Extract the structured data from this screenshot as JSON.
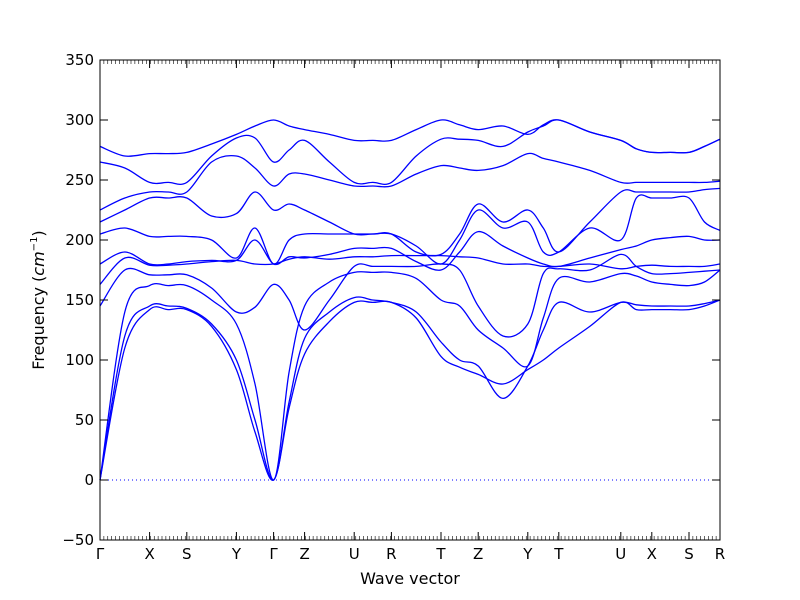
{
  "chart_data": {
    "type": "line",
    "title": "",
    "xlabel": "Wave vector",
    "ylabel_text": "Frequency (",
    "ylabel_unit_base": "cm",
    "ylabel_unit_exp": "−1",
    "ylabel_close": ")",
    "ylim": [
      -50,
      350
    ],
    "yticks": [
      -50,
      0,
      50,
      100,
      150,
      200,
      250,
      300,
      350
    ],
    "grid": false,
    "legend": "none",
    "series_color": "#0000ff",
    "zero_line_color": "#0000ff",
    "x_range": [
      0,
      20
    ],
    "points": [
      {
        "label": "Γ",
        "x": 0
      },
      {
        "label": "X",
        "x": 1.6
      },
      {
        "label": "S",
        "x": 2.8
      },
      {
        "label": "Y",
        "x": 4.4
      },
      {
        "label": "Γ",
        "x": 5.6
      },
      {
        "label": "Z",
        "x": 6.6
      },
      {
        "label": "U",
        "x": 8.2
      },
      {
        "label": "R",
        "x": 9.4
      },
      {
        "label": "T",
        "x": 11.0
      },
      {
        "label": "Z",
        "x": 12.2
      },
      {
        "label": "Y",
        "x": 13.8
      },
      {
        "label": "T",
        "x": 14.8
      },
      {
        "label": "U",
        "x": 16.8
      },
      {
        "label": "X",
        "x": 17.8
      },
      {
        "label": "S",
        "x": 19.0
      },
      {
        "label": "R",
        "x": 20.0
      }
    ],
    "series": [
      {
        "x": [
          0,
          0.8,
          1.6,
          2.2,
          2.8,
          3.6,
          4.4,
          5.0,
          5.6,
          6.1,
          6.6,
          7.4,
          8.2,
          8.8,
          9.4,
          10.2,
          11.0,
          11.6,
          12.2,
          13.0,
          13.8,
          14.3,
          14.8,
          15.8,
          16.8,
          17.3,
          17.8,
          18.4,
          19.0,
          19.5,
          20.0
        ],
        "y": [
          0,
          110,
          142,
          142,
          142,
          128,
          92,
          40,
          0,
          60,
          105,
          132,
          148,
          148,
          148,
          135,
          103,
          94,
          88,
          80,
          92,
          100,
          110,
          128,
          148,
          142,
          142,
          142,
          142,
          145,
          150
        ]
      },
      {
        "x": [
          0,
          0.8,
          1.6,
          2.2,
          2.8,
          3.6,
          4.4,
          5.0,
          5.6,
          6.1,
          6.6,
          7.4,
          8.2,
          8.8,
          9.4,
          10.2,
          11.0,
          11.6,
          12.2,
          13.0,
          13.8,
          14.3,
          14.8,
          15.8,
          16.8,
          17.3,
          17.8,
          18.4,
          19.0,
          19.5,
          20.0
        ],
        "y": [
          0,
          120,
          145,
          145,
          143,
          130,
          100,
          50,
          0,
          65,
          118,
          140,
          152,
          150,
          148,
          140,
          115,
          100,
          95,
          68,
          95,
          125,
          148,
          140,
          148,
          146,
          145,
          145,
          145,
          147,
          150
        ]
      },
      {
        "x": [
          0,
          0.8,
          1.6,
          2.2,
          2.8,
          3.6,
          4.4,
          5.0,
          5.6,
          6.1,
          6.6,
          7.4,
          8.2,
          8.8,
          9.4,
          10.2,
          11.0,
          11.6,
          12.2,
          13.0,
          13.8,
          14.3,
          14.8,
          15.8,
          16.8,
          17.3,
          17.8,
          18.4,
          19.0,
          19.5,
          20.0
        ],
        "y": [
          0,
          140,
          162,
          162,
          162,
          150,
          130,
          80,
          0,
          90,
          145,
          165,
          173,
          173,
          173,
          168,
          150,
          145,
          125,
          110,
          95,
          135,
          168,
          165,
          172,
          170,
          165,
          163,
          162,
          165,
          175
        ]
      },
      {
        "x": [
          0,
          0.8,
          1.6,
          2.2,
          2.8,
          3.6,
          4.4,
          5.0,
          5.6,
          6.1,
          6.6,
          7.4,
          8.2,
          8.8,
          9.4,
          10.2,
          11.0,
          11.6,
          12.2,
          13.0,
          13.8,
          14.3,
          14.8,
          15.8,
          16.8,
          17.3,
          17.8,
          18.4,
          19.0,
          19.5,
          20.0
        ],
        "y": [
          145,
          175,
          171,
          171,
          171,
          160,
          140,
          144,
          163,
          150,
          125,
          150,
          178,
          178,
          178,
          178,
          180,
          175,
          145,
          120,
          130,
          172,
          176,
          175,
          188,
          178,
          172,
          172,
          173,
          174,
          175
        ]
      },
      {
        "x": [
          0,
          0.8,
          1.6,
          2.2,
          2.8,
          3.6,
          4.4,
          5.0,
          5.6,
          6.1,
          6.6,
          7.4,
          8.2,
          8.8,
          9.4,
          10.2,
          11.0,
          11.6,
          12.2,
          13.0,
          13.8,
          14.3,
          14.8,
          15.8,
          16.8,
          17.3,
          17.8,
          18.4,
          19.0,
          19.5,
          20.0
        ],
        "y": [
          163,
          185,
          179,
          179,
          180,
          182,
          183,
          180,
          180,
          184,
          186,
          184,
          186,
          186,
          187,
          187,
          187,
          186,
          185,
          180,
          180,
          178,
          178,
          180,
          176,
          178,
          179,
          178,
          178,
          178,
          180
        ]
      },
      {
        "x": [
          0,
          0.8,
          1.6,
          2.2,
          2.8,
          3.6,
          4.4,
          5.0,
          5.6,
          6.1,
          6.6,
          7.4,
          8.2,
          8.8,
          9.4,
          10.2,
          11.0,
          11.6,
          12.2,
          13.0,
          13.8,
          14.3,
          14.8,
          15.8,
          16.8,
          17.3,
          17.8,
          18.4,
          19.0,
          19.5,
          20.0
        ],
        "y": [
          180,
          190,
          180,
          180,
          182,
          183,
          183,
          200,
          180,
          186,
          185,
          188,
          193,
          193,
          193,
          182,
          175,
          190,
          207,
          195,
          185,
          180,
          178,
          185,
          192,
          195,
          200,
          202,
          203,
          200,
          200
        ]
      },
      {
        "x": [
          0,
          0.8,
          1.6,
          2.2,
          2.8,
          3.6,
          4.4,
          5.0,
          5.6,
          6.1,
          6.6,
          7.4,
          8.2,
          8.8,
          9.4,
          10.2,
          11.0,
          11.6,
          12.2,
          13.0,
          13.8,
          14.3,
          14.8,
          15.8,
          16.8,
          17.3,
          17.8,
          18.4,
          19.0,
          19.5,
          20.0
        ],
        "y": [
          205,
          210,
          203,
          203,
          203,
          200,
          185,
          210,
          180,
          200,
          205,
          205,
          205,
          205,
          205,
          195,
          180,
          200,
          225,
          210,
          215,
          190,
          190,
          210,
          200,
          235,
          235,
          235,
          235,
          215,
          208
        ]
      },
      {
        "x": [
          0,
          0.8,
          1.6,
          2.2,
          2.8,
          3.6,
          4.4,
          5.0,
          5.6,
          6.1,
          6.6,
          7.4,
          8.2,
          8.8,
          9.4,
          10.2,
          11.0,
          11.6,
          12.2,
          13.0,
          13.8,
          14.3,
          14.8,
          15.8,
          16.8,
          17.3,
          17.8,
          18.4,
          19.0,
          19.5,
          20.0
        ],
        "y": [
          215,
          225,
          235,
          235,
          235,
          220,
          222,
          240,
          225,
          230,
          225,
          215,
          205,
          205,
          205,
          190,
          188,
          205,
          230,
          215,
          225,
          210,
          190,
          215,
          240,
          240,
          240,
          240,
          240,
          242,
          243
        ]
      },
      {
        "x": [
          0,
          0.8,
          1.6,
          2.2,
          2.8,
          3.6,
          4.4,
          5.0,
          5.6,
          6.1,
          6.6,
          7.4,
          8.2,
          8.8,
          9.4,
          10.2,
          11.0,
          11.6,
          12.2,
          13.0,
          13.8,
          14.3,
          14.8,
          15.8,
          16.8,
          17.3,
          17.8,
          18.4,
          19.0,
          19.5,
          20.0
        ],
        "y": [
          225,
          235,
          240,
          240,
          240,
          265,
          270,
          260,
          245,
          255,
          255,
          250,
          245,
          245,
          245,
          255,
          262,
          260,
          258,
          262,
          272,
          268,
          265,
          258,
          248,
          248,
          248,
          248,
          248,
          248,
          249
        ]
      },
      {
        "x": [
          0,
          0.8,
          1.6,
          2.2,
          2.8,
          3.6,
          4.4,
          5.0,
          5.6,
          6.1,
          6.6,
          7.4,
          8.2,
          8.8,
          9.4,
          10.2,
          11.0,
          11.6,
          12.2,
          13.0,
          13.8,
          14.3,
          14.8,
          15.8,
          16.8,
          17.3,
          17.8,
          18.4,
          19.0,
          19.5,
          20.0
        ],
        "y": [
          265,
          260,
          248,
          248,
          248,
          270,
          285,
          285,
          265,
          275,
          283,
          265,
          248,
          248,
          248,
          270,
          284,
          284,
          283,
          278,
          290,
          295,
          300,
          290,
          283,
          276,
          273,
          273,
          273,
          278,
          284
        ]
      },
      {
        "x": [
          0,
          0.8,
          1.6,
          2.2,
          2.8,
          3.6,
          4.4,
          5.0,
          5.6,
          6.1,
          6.6,
          7.4,
          8.2,
          8.8,
          9.4,
          10.2,
          11.0,
          11.6,
          12.2,
          13.0,
          13.8,
          14.3,
          14.8,
          15.8,
          16.8,
          17.3,
          17.8,
          18.4,
          19.0,
          19.5,
          20.0
        ],
        "y": [
          278,
          270,
          272,
          272,
          273,
          280,
          288,
          295,
          300,
          295,
          292,
          288,
          283,
          283,
          283,
          292,
          300,
          296,
          292,
          295,
          288,
          296,
          300,
          290,
          283,
          276,
          273,
          273,
          273,
          278,
          284
        ]
      }
    ]
  }
}
